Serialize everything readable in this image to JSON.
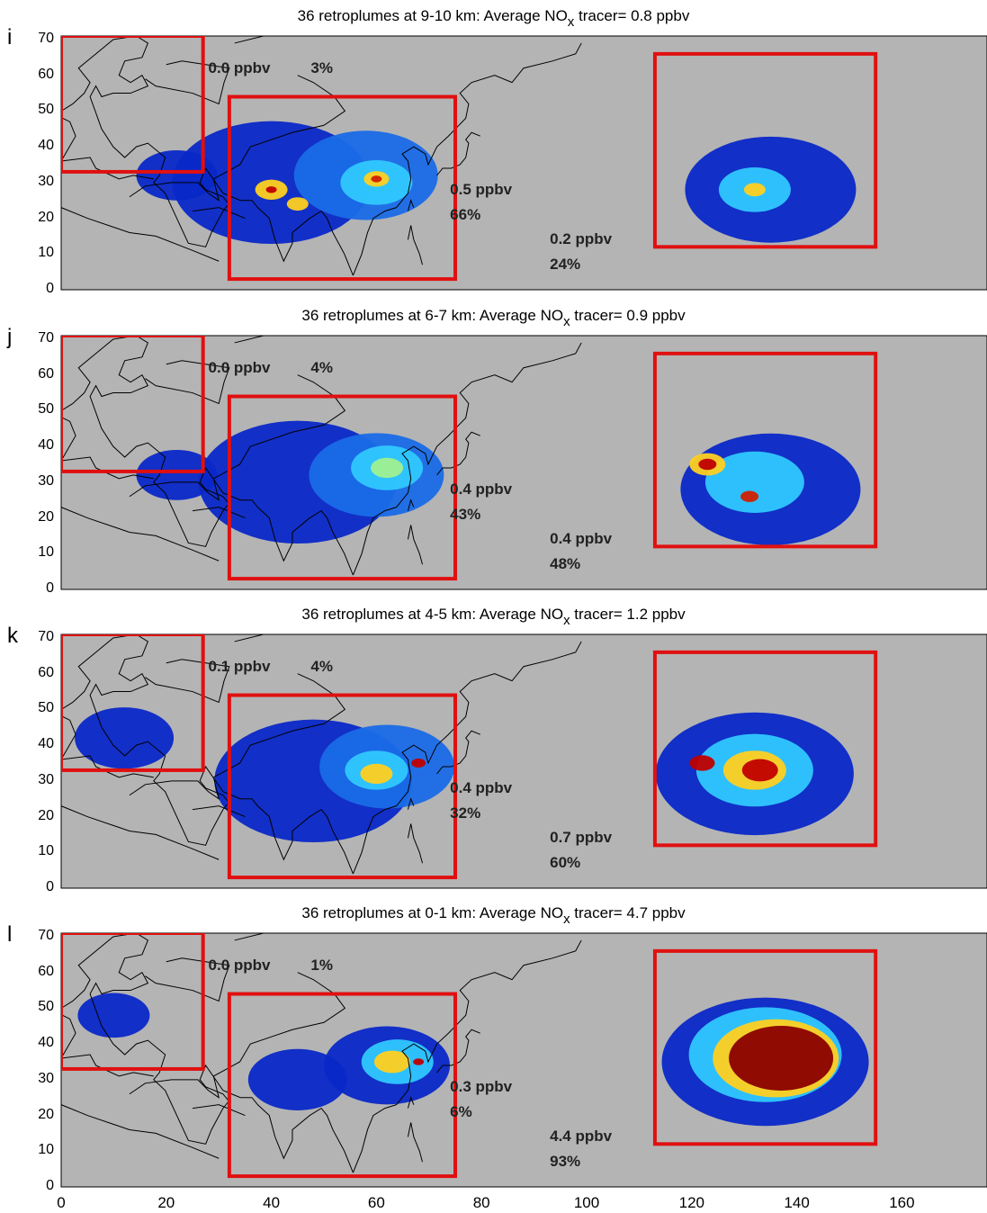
{
  "x_axis": {
    "ticks": [
      "0",
      "20",
      "40",
      "60",
      "80",
      "100",
      "120",
      "140",
      "160"
    ]
  },
  "y_axis": {
    "ticks": [
      "0",
      "10",
      "20",
      "30",
      "40",
      "50",
      "60",
      "70"
    ]
  },
  "colors": {
    "ocean_land": "#b4b4b4",
    "box": "#e01010",
    "coast": "#000000"
  },
  "panels": [
    {
      "letter": "i",
      "title_pre": "36 retroplumes at 9-10 km:  Average NO",
      "title_sub": "x",
      "title_post": " tracer= 0.8 ppbv",
      "europe": {
        "ppbv": "0.0 ppbv",
        "pct": "3%"
      },
      "asia": {
        "ppbv": "0.5 ppbv",
        "pct": "66%"
      },
      "namerica": {
        "ppbv": "0.2 ppbv",
        "pct": "24%"
      }
    },
    {
      "letter": "j",
      "title_pre": "36 retroplumes at 6-7 km:  Average NO",
      "title_sub": "x",
      "title_post": " tracer= 0.9 ppbv",
      "europe": {
        "ppbv": "0.0 ppbv",
        "pct": "4%"
      },
      "asia": {
        "ppbv": "0.4 ppbv",
        "pct": "43%"
      },
      "namerica": {
        "ppbv": "0.4 ppbv",
        "pct": "48%"
      }
    },
    {
      "letter": "k",
      "title_pre": "36 retroplumes at 4-5 km:  Average NO",
      "title_sub": "x",
      "title_post": " tracer= 1.2 ppbv",
      "europe": {
        "ppbv": "0.1 ppbv",
        "pct": "4%"
      },
      "asia": {
        "ppbv": "0.4 ppbv",
        "pct": "32%"
      },
      "namerica": {
        "ppbv": "0.7 ppbv",
        "pct": "60%"
      }
    },
    {
      "letter": "l",
      "title_pre": "36 retroplumes at 0-1 km:  Average NO",
      "title_sub": "x",
      "title_post": " tracer= 4.7 ppbv",
      "europe": {
        "ppbv": "0.0 ppbv",
        "pct": "1%"
      },
      "asia": {
        "ppbv": "0.3 ppbv",
        "pct": "6%"
      },
      "namerica": {
        "ppbv": "4.4 ppbv",
        "pct": "93%"
      }
    }
  ]
}
